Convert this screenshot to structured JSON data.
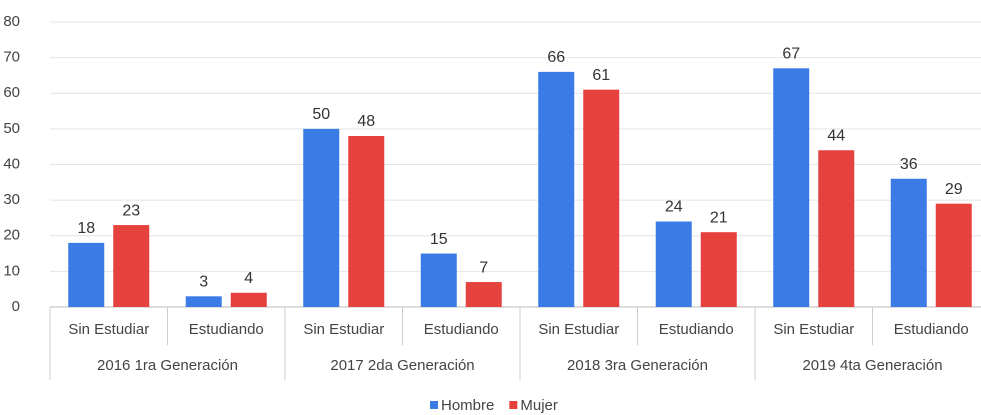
{
  "chart_data": {
    "type": "bar",
    "categories": [
      "Sin Estudiar",
      "Estudiando",
      "Sin Estudiar",
      "Estudiando",
      "Sin Estudiar",
      "Estudiando",
      "Sin Estudiar",
      "Estudiando"
    ],
    "groups": [
      "2016 1ra Generación",
      "2017 2da Generación",
      "2018 3ra Generación",
      "2019 4ta Generación"
    ],
    "series": [
      {
        "name": "Hombre",
        "color": "#3a7be6",
        "values": [
          18,
          3,
          50,
          15,
          66,
          24,
          67,
          36
        ]
      },
      {
        "name": "Mujer",
        "color": "#e5413d",
        "values": [
          23,
          4,
          48,
          7,
          61,
          21,
          44,
          29
        ]
      }
    ],
    "ylim": [
      0,
      80
    ],
    "yticks": [
      0,
      10,
      20,
      30,
      40,
      50,
      60,
      70,
      80
    ],
    "grid": true,
    "legend": "bottom"
  }
}
